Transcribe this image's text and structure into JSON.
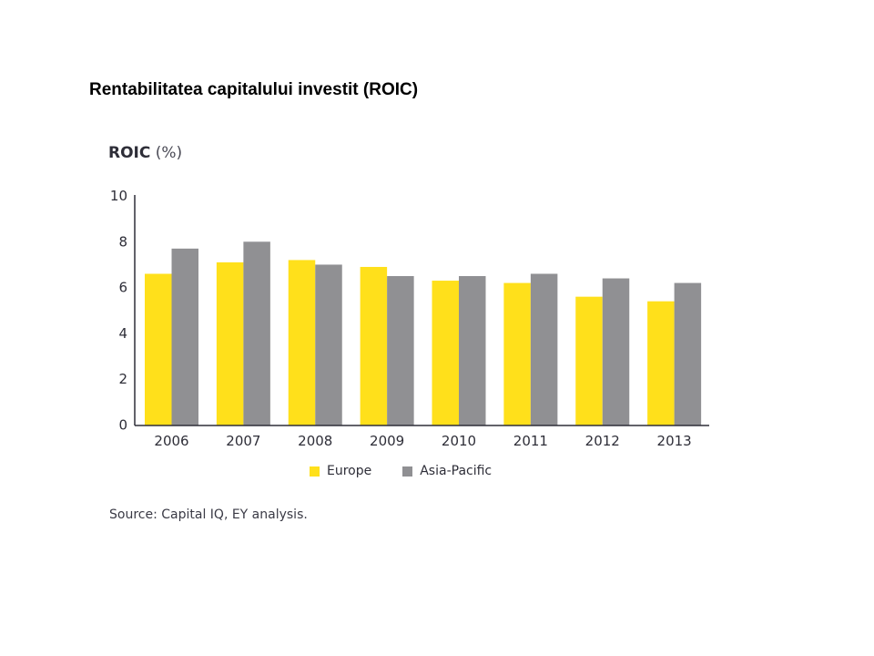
{
  "slide": {
    "title": "Rentabilitatea capitalului investit (ROIC)"
  },
  "chart_data": {
    "type": "bar",
    "title": "ROIC",
    "title_unit": "(%)",
    "xlabel": "",
    "ylabel": "ROIC (%)",
    "ylim": [
      0,
      10
    ],
    "yticks": [
      0,
      2,
      4,
      6,
      8,
      10
    ],
    "grid": false,
    "legend_position": "bottom-center",
    "categories": [
      "2006",
      "2007",
      "2008",
      "2009",
      "2010",
      "2011",
      "2012",
      "2013"
    ],
    "series": [
      {
        "name": "Europe",
        "color": "#ffe01b",
        "values": [
          6.6,
          7.1,
          7.2,
          6.9,
          6.3,
          6.2,
          5.6,
          5.4
        ]
      },
      {
        "name": "Asia-Pacific",
        "color": "#909093",
        "values": [
          7.7,
          8.0,
          7.0,
          6.5,
          6.5,
          6.6,
          6.4,
          6.2
        ]
      }
    ],
    "source": "Source: Capital IQ, EY analysis."
  },
  "colors": {
    "axis": "#2e2e38",
    "text": "#2e2e38"
  }
}
